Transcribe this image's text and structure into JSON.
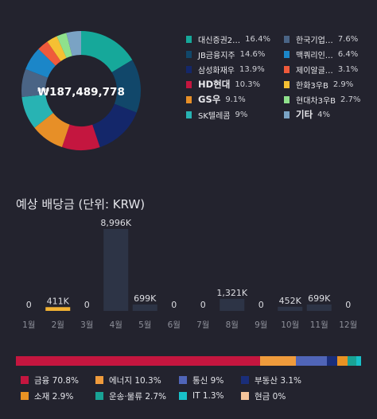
{
  "portfolio": {
    "total": "₩187,489,778",
    "holdings": [
      {
        "name": "대신증권2…",
        "pct": "16.4%",
        "value": 16.4,
        "color": "#16a89a"
      },
      {
        "name": "JB금융지주",
        "pct": "14.6%",
        "value": 14.6,
        "color": "#11476a"
      },
      {
        "name": "삼성화재우",
        "pct": "13.9%",
        "value": 13.9,
        "color": "#14276a"
      },
      {
        "name": "HD현대",
        "pct": "10.3%",
        "value": 10.3,
        "color": "#c4163f"
      },
      {
        "name": "GS우",
        "pct": "9.1%",
        "value": 9.1,
        "color": "#e78f27"
      },
      {
        "name": "SK텔레콤",
        "pct": "9%",
        "value": 9,
        "color": "#28b3b3"
      },
      {
        "name": "한국기업…",
        "pct": "7.6%",
        "value": 7.6,
        "color": "#4a6485"
      },
      {
        "name": "맥쿼리인…",
        "pct": "6.4%",
        "value": 6.4,
        "color": "#1b86c8"
      },
      {
        "name": "제이알글…",
        "pct": "3.1%",
        "value": 3.1,
        "color": "#ef5a3b"
      },
      {
        "name": "한화3우B",
        "pct": "2.9%",
        "value": 2.9,
        "color": "#f5c033"
      },
      {
        "name": "현대차3우B",
        "pct": "2.7%",
        "value": 2.7,
        "color": "#8fe18c"
      },
      {
        "name": "기타",
        "pct": "4%",
        "value": 4,
        "color": "#7aa3c4"
      }
    ]
  },
  "dividends": {
    "title": "예상 배당금 (단위: KRW)",
    "chart_data": {
      "type": "bar",
      "categories": [
        "1월",
        "2월",
        "3월",
        "4월",
        "5월",
        "6월",
        "7월",
        "8월",
        "9월",
        "10월",
        "11월",
        "12월"
      ],
      "values": [
        0,
        411,
        0,
        8996,
        699,
        0,
        0,
        1321,
        0,
        452,
        699,
        0
      ],
      "labels": [
        "0",
        "411K",
        "0",
        "8,996K",
        "699K",
        "0",
        "0",
        "1,321K",
        "0",
        "452K",
        "699K",
        "0"
      ],
      "highlight_index": 1,
      "highlight_color": "#f2b233",
      "bar_color": "#2d3446",
      "ylim": [
        0,
        8996
      ]
    }
  },
  "categories": [
    {
      "name": "금융",
      "pct": "70.8%",
      "value": 70.8,
      "color": "#c4163f"
    },
    {
      "name": "에너지",
      "pct": "10.3%",
      "value": 10.3,
      "color": "#ef9b3c"
    },
    {
      "name": "통신",
      "pct": "9%",
      "value": 9,
      "color": "#5065b8"
    },
    {
      "name": "부동산",
      "pct": "3.1%",
      "value": 3.1,
      "color": "#1a2e7a"
    },
    {
      "name": "소재",
      "pct": "2.9%",
      "value": 2.9,
      "color": "#e89223"
    },
    {
      "name": "운송·물류",
      "pct": "2.7%",
      "value": 2.7,
      "color": "#19a395"
    },
    {
      "name": "IT",
      "pct": "1.3%",
      "value": 1.3,
      "color": "#18c0c8"
    },
    {
      "name": "현금",
      "pct": "0%",
      "value": 0,
      "color": "#f3c39a"
    }
  ]
}
